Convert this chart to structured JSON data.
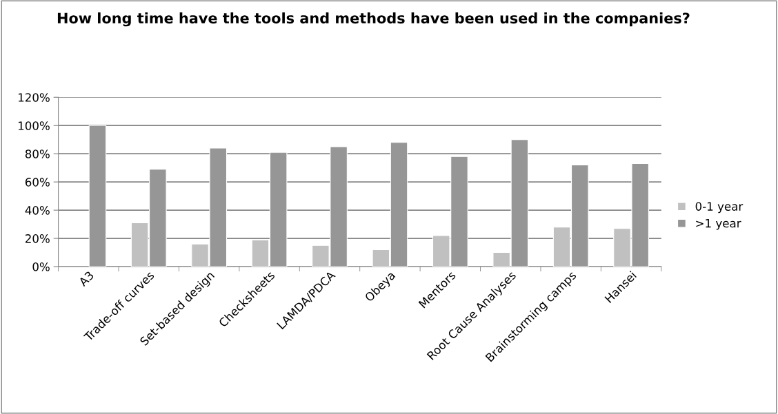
{
  "chart_data": {
    "type": "bar",
    "title": "How long time have the tools and methods have been used in the companies?",
    "categories": [
      "A3",
      "Trade-off curves",
      "Set-based design",
      "Checksheets",
      "LAMDA/PDCA",
      "Obeya",
      "Mentors",
      "Root Cause Analyses",
      "Brainstorming camps",
      "Hansei"
    ],
    "series": [
      {
        "name": "0-1 year",
        "color": "#c0c0c0",
        "values": [
          null,
          31,
          16,
          19,
          15,
          12,
          22,
          10,
          28,
          27
        ]
      },
      {
        "name": ">1 year",
        "color": "#969696",
        "values": [
          100,
          69,
          84,
          81,
          85,
          88,
          78,
          90,
          72,
          73
        ]
      }
    ],
    "ylim": [
      0,
      120
    ],
    "yticks": [
      {
        "value": 0,
        "label": "0%"
      },
      {
        "value": 20,
        "label": "20%"
      },
      {
        "value": 40,
        "label": "40%"
      },
      {
        "value": 60,
        "label": "60%"
      },
      {
        "value": 80,
        "label": "80%"
      },
      {
        "value": 100,
        "label": "100%"
      },
      {
        "value": 120,
        "label": "120%"
      }
    ],
    "grid": "y",
    "legend": "right"
  }
}
